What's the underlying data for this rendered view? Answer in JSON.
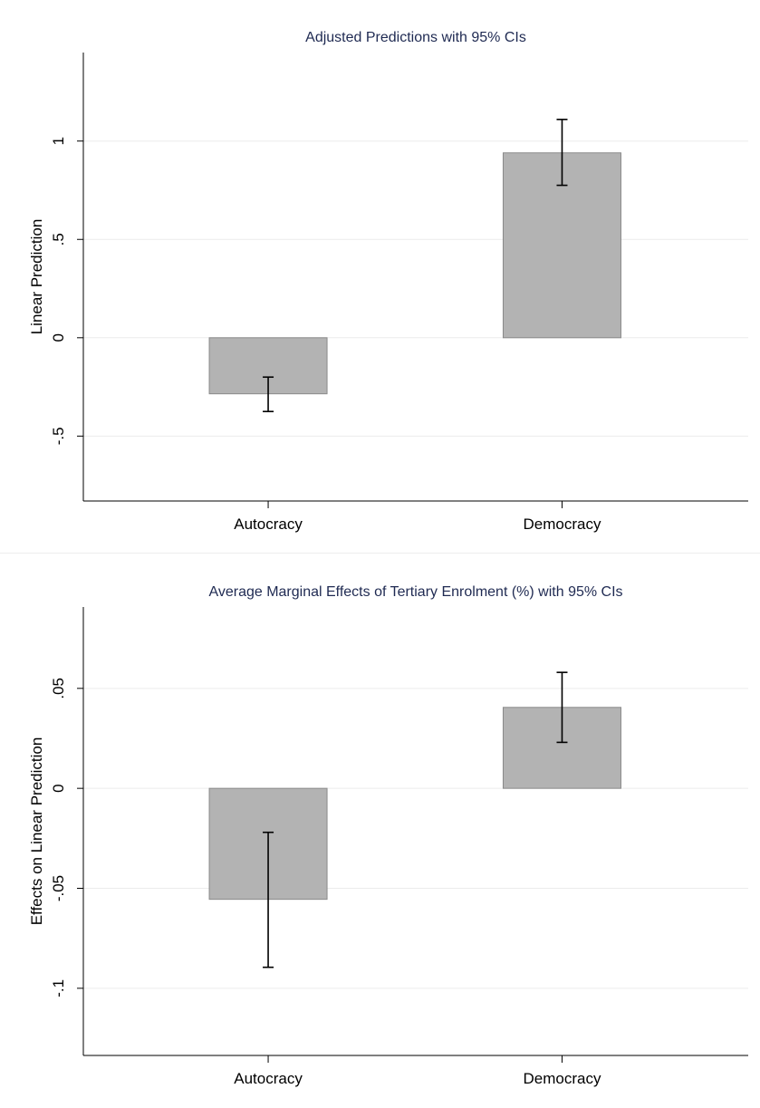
{
  "colors": {
    "bar_fill": "#b3b3b3",
    "bar_stroke": "#8a8a8a",
    "title": "#1f2a52"
  },
  "chart_data": [
    {
      "type": "bar",
      "title": "Adjusted Predictions with 95% CIs",
      "xlabel": "",
      "ylabel": "Linear Prediction",
      "categories": [
        "Autocracy",
        "Democracy"
      ],
      "values": [
        -0.285,
        0.94
      ],
      "ci_low": [
        -0.375,
        0.775
      ],
      "ci_high": [
        -0.2,
        1.11
      ],
      "ylim": [
        -0.83,
        1.45
      ],
      "yticks": [
        -0.5,
        0,
        0.5,
        1
      ],
      "ytick_labels": [
        "-.5",
        "0",
        ".5",
        "1"
      ],
      "grid": true,
      "legend": "none"
    },
    {
      "type": "bar",
      "title": "Average Marginal Effects of Tertiary Enrolment (%) with 95% CIs",
      "xlabel": "",
      "ylabel": "Effects on Linear Prediction",
      "categories": [
        "Autocracy",
        "Democracy"
      ],
      "values": [
        -0.0555,
        0.0405
      ],
      "ci_low": [
        -0.0895,
        0.023
      ],
      "ci_high": [
        -0.022,
        0.058
      ],
      "ylim": [
        -0.1336,
        0.0907
      ],
      "yticks": [
        -0.1,
        -0.05,
        0,
        0.05
      ],
      "ytick_labels": [
        "-.1",
        "-.05",
        "0",
        ".05"
      ],
      "grid": true,
      "legend": "none"
    }
  ]
}
